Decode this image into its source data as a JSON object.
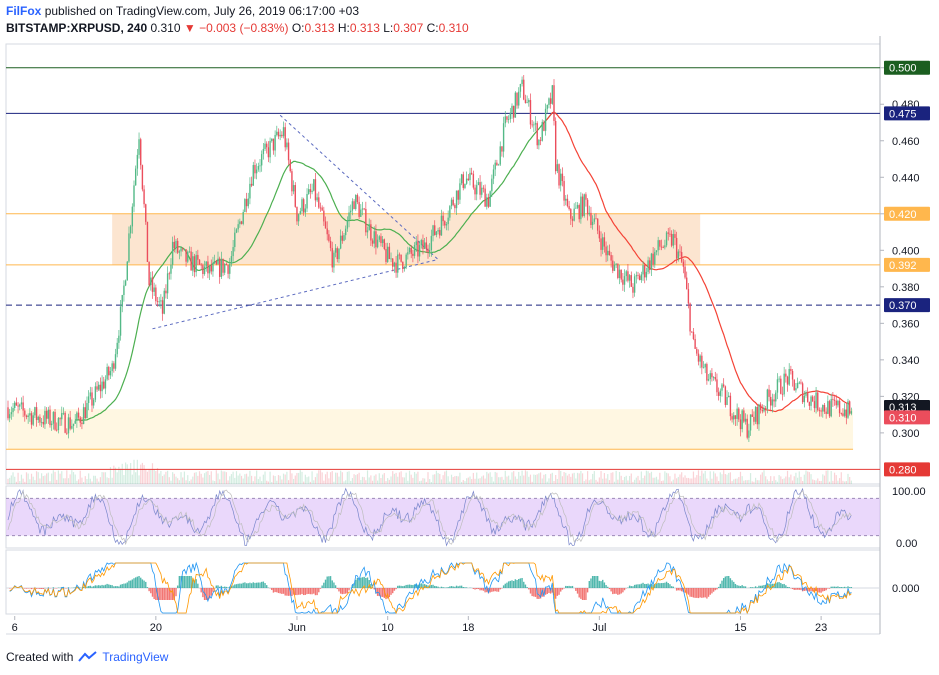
{
  "header": {
    "publisher": "FilFox",
    "published_text": "published on TradingView.com, July 26, 2019 06:17:00 +03",
    "symbol": "BITSTAMP:XRPUSD, 240",
    "last": "0.310",
    "change": "▼ −0.003 (−0.83%)",
    "o_label": "O:",
    "o_value": "0.313",
    "h_label": "H:",
    "h_value": "0.313",
    "l_label": "L:",
    "l_value": "0.307",
    "c_label": "C:",
    "c_value": "0.310"
  },
  "footer": {
    "created_with": "Created with",
    "brand": "TradingView"
  },
  "colors": {
    "up": "#53b987",
    "down": "#eb4d5c",
    "resistance_zone": "#fce1c8",
    "support_zone": "#fff6dd",
    "rsi_band": "#e1c8fa",
    "ma_red": "#f44336",
    "ma_green": "#4caf50"
  },
  "chart_data": {
    "type": "candlestick",
    "title": "BITSTAMP:XRPUSD, 240",
    "ylim": [
      0.272,
      0.513
    ],
    "y_ticks": [
      "0.500",
      "0.480",
      "0.460",
      "0.440",
      "0.420",
      "0.400",
      "0.380",
      "0.360",
      "0.340",
      "0.320",
      "0.300"
    ],
    "x_ticks": [
      {
        "label": "6",
        "i": 4
      },
      {
        "label": "20",
        "i": 88
      },
      {
        "label": "Jun",
        "i": 172
      },
      {
        "label": "10",
        "i": 226
      },
      {
        "label": "18",
        "i": 274
      },
      {
        "label": "Jul",
        "i": 352
      },
      {
        "label": "15",
        "i": 436
      },
      {
        "label": "23",
        "i": 484
      }
    ],
    "n_candles": 503,
    "price_path": [
      [
        0,
        0.314
      ],
      [
        20,
        0.308
      ],
      [
        40,
        0.305
      ],
      [
        50,
        0.318
      ],
      [
        62,
        0.335
      ],
      [
        68,
        0.37
      ],
      [
        78,
        0.465
      ],
      [
        84,
        0.382
      ],
      [
        92,
        0.366
      ],
      [
        98,
        0.403
      ],
      [
        104,
        0.396
      ],
      [
        120,
        0.388
      ],
      [
        132,
        0.393
      ],
      [
        146,
        0.445
      ],
      [
        164,
        0.465
      ],
      [
        172,
        0.42
      ],
      [
        182,
        0.433
      ],
      [
        194,
        0.393
      ],
      [
        206,
        0.428
      ],
      [
        216,
        0.41
      ],
      [
        226,
        0.396
      ],
      [
        232,
        0.393
      ],
      [
        248,
        0.402
      ],
      [
        260,
        0.418
      ],
      [
        272,
        0.44
      ],
      [
        286,
        0.428
      ],
      [
        296,
        0.468
      ],
      [
        306,
        0.489
      ],
      [
        316,
        0.46
      ],
      [
        324,
        0.485
      ],
      [
        326,
        0.448
      ],
      [
        334,
        0.418
      ],
      [
        344,
        0.426
      ],
      [
        358,
        0.395
      ],
      [
        372,
        0.38
      ],
      [
        388,
        0.402
      ],
      [
        396,
        0.406
      ],
      [
        402,
        0.39
      ],
      [
        408,
        0.347
      ],
      [
        416,
        0.33
      ],
      [
        426,
        0.32
      ],
      [
        432,
        0.312
      ],
      [
        440,
        0.303
      ],
      [
        452,
        0.318
      ],
      [
        464,
        0.33
      ],
      [
        476,
        0.32
      ],
      [
        486,
        0.314
      ],
      [
        498,
        0.313
      ],
      [
        502,
        0.31
      ]
    ],
    "horizontal_levels": [
      {
        "value": 0.5,
        "label": "0.500",
        "color": "#1b5e20",
        "style": "solid"
      },
      {
        "value": 0.475,
        "label": "0.475",
        "color": "#1a237e",
        "style": "solid"
      },
      {
        "value": 0.42,
        "label": "0.420",
        "color": "#ffb74d",
        "style": "solid"
      },
      {
        "value": 0.392,
        "label": "0.392",
        "color": "#ffb74d",
        "style": "solid"
      },
      {
        "value": 0.37,
        "label": "0.370",
        "color": "#1a237e",
        "style": "dashed"
      },
      {
        "value": 0.28,
        "label": "0.280",
        "color": "#e53935",
        "style": "solid"
      }
    ],
    "zones": [
      {
        "name": "resistance",
        "from": 0.392,
        "to": 0.42,
        "i_start": 62,
        "i_end": 412
      },
      {
        "name": "support",
        "from": 0.291,
        "to": 0.313,
        "i_start": 0,
        "i_end": 503
      }
    ],
    "price_labels": [
      {
        "value": 0.313,
        "label": "0.313",
        "color": "#131722"
      },
      {
        "value": 0.31,
        "label": "0.310",
        "color": "#eb4d5c"
      }
    ],
    "trendlines": [
      {
        "from": [
          86,
          0.357
        ],
        "to": [
          256,
          0.395
        ],
        "color": "#5c6bc0",
        "style": "dashed"
      },
      {
        "from": [
          162,
          0.474
        ],
        "to": [
          256,
          0.395
        ],
        "color": "#5c6bc0",
        "style": "dashed"
      }
    ],
    "moving_averages": [
      {
        "name": "MA slow",
        "color": "#4caf50",
        "i_end": 326
      },
      {
        "name": "MA fast",
        "color": "#f44336",
        "i_start": 320
      }
    ],
    "rsi": {
      "ticks": [
        "100.00",
        "0.00"
      ],
      "band": [
        20,
        80
      ]
    },
    "macd": {
      "ticks": [
        "0.000"
      ]
    }
  }
}
